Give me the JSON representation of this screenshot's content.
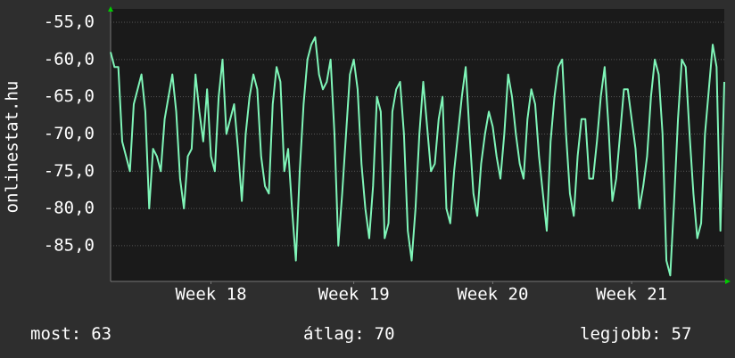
{
  "chart_data": {
    "type": "line",
    "ylabel": "onlinestat.hu",
    "color": "#7ff5b8",
    "grid": true,
    "xlim": [
      0,
      159
    ],
    "xticks": [
      {
        "value": 26,
        "label": "Week 18"
      },
      {
        "value": 63,
        "label": "Week 19"
      },
      {
        "value": 99,
        "label": "Week 20"
      },
      {
        "value": 135,
        "label": "Week 21"
      }
    ],
    "ylim": [
      -89.8,
      -53.2
    ],
    "yticks": [
      {
        "value": -85,
        "label": "-85,0"
      },
      {
        "value": -80,
        "label": "-80,0"
      },
      {
        "value": -75,
        "label": "-75,0"
      },
      {
        "value": -70,
        "label": "-70,0"
      },
      {
        "value": -65,
        "label": "-65,0"
      },
      {
        "value": -60,
        "label": "-60,0"
      },
      {
        "value": -55,
        "label": "-55,0"
      }
    ],
    "values": [
      -59,
      -61,
      -61,
      -71,
      -73,
      -75,
      -66,
      -64,
      -62,
      -67,
      -80,
      -72,
      -73,
      -75,
      -68,
      -65,
      -62,
      -67,
      -76,
      -80,
      -73,
      -72,
      -62,
      -67,
      -71,
      -64,
      -73,
      -75,
      -65,
      -60,
      -70,
      -68,
      -66,
      -72,
      -79,
      -70,
      -65,
      -62,
      -64,
      -73,
      -77,
      -78,
      -66,
      -61,
      -63,
      -75,
      -72,
      -80,
      -87,
      -75,
      -66,
      -60,
      -58,
      -57,
      -62,
      -64,
      -63,
      -60,
      -70,
      -85,
      -78,
      -70,
      -62,
      -60,
      -64,
      -74,
      -80,
      -84,
      -77,
      -65,
      -67,
      -84,
      -82,
      -67,
      -64,
      -63,
      -70,
      -83,
      -87,
      -80,
      -70,
      -63,
      -69,
      -75,
      -74,
      -68,
      -65,
      -80,
      -82,
      -75,
      -70,
      -65,
      -61,
      -70,
      -78,
      -81,
      -74,
      -70,
      -67,
      -69,
      -73,
      -76,
      -70,
      -62,
      -65,
      -70,
      -74,
      -76,
      -68,
      -64,
      -66,
      -73,
      -78,
      -83,
      -71,
      -65,
      -61,
      -60,
      -70,
      -78,
      -81,
      -73,
      -68,
      -68,
      -76,
      -76,
      -71,
      -65,
      -61,
      -69,
      -79,
      -76,
      -70,
      -64,
      -64,
      -68,
      -72,
      -80,
      -77,
      -73,
      -65,
      -60,
      -62,
      -70,
      -87,
      -89,
      -79,
      -68,
      -60,
      -61,
      -70,
      -78,
      -84,
      -82,
      -70,
      -64,
      -58,
      -61,
      -83,
      -63
    ],
    "stats": [
      {
        "label": "most:",
        "value": 63
      },
      {
        "label": "átlag:",
        "value": 70
      },
      {
        "label": "legjobb:",
        "value": 57
      }
    ]
  }
}
